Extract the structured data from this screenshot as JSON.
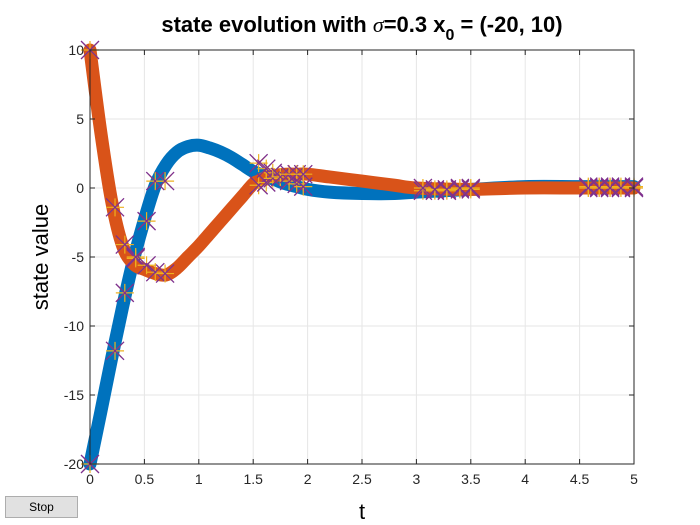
{
  "chart_data": {
    "type": "line",
    "title": {
      "prefix": "state evolution with ",
      "sigma": "σ",
      "sigma_value": "=0.3 x",
      "subscript": "0",
      "suffix": " = (-20, 10)"
    },
    "xlabel": "t",
    "ylabel": "state value",
    "xlim": [
      0,
      5
    ],
    "ylim": [
      -20,
      10
    ],
    "xticks": [
      0,
      0.5,
      1,
      1.5,
      2,
      2.5,
      3,
      3.5,
      4,
      4.5,
      5
    ],
    "xtick_labels": [
      "0",
      "0.5",
      "1",
      "1.5",
      "2",
      "2.5",
      "3",
      "3.5",
      "4",
      "4.5",
      "5"
    ],
    "yticks": [
      -20,
      -15,
      -10,
      -5,
      0,
      5,
      10
    ],
    "ytick_labels": [
      "-20",
      "-15",
      "-10",
      "-5",
      "0",
      "5",
      "10"
    ],
    "grid": true,
    "series": [
      {
        "color": "#0072BD",
        "x": [
          0,
          0.1,
          0.2,
          0.3,
          0.4,
          0.5,
          0.6,
          0.7,
          0.8,
          0.9,
          1.0,
          1.1,
          1.2,
          1.3,
          1.4,
          1.5,
          1.6,
          1.7,
          1.8,
          1.9,
          2.0,
          2.2,
          2.5,
          2.8,
          3.0,
          3.5,
          4.0,
          4.5,
          5.0
        ],
        "y": [
          -20,
          -16.2,
          -12.3,
          -8.6,
          -5.2,
          -2.3,
          0.2,
          1.7,
          2.6,
          3.0,
          3.1,
          2.9,
          2.6,
          2.2,
          1.7,
          1.2,
          0.9,
          0.6,
          0.3,
          0.1,
          -0.1,
          -0.3,
          -0.4,
          -0.4,
          -0.3,
          -0.1,
          0.1,
          0.1,
          0.1
        ]
      },
      {
        "color": "#D95319",
        "x": [
          0,
          0.1,
          0.2,
          0.3,
          0.4,
          0.5,
          0.6,
          0.7,
          0.8,
          0.9,
          1.0,
          1.1,
          1.2,
          1.3,
          1.4,
          1.5,
          1.55,
          1.6,
          1.7,
          1.8,
          1.9,
          2.0,
          2.2,
          2.5,
          2.8,
          3.0,
          3.5,
          4.0,
          4.5,
          5.0
        ],
        "y": [
          10,
          4.0,
          -1.0,
          -4.2,
          -5.5,
          -5.9,
          -6.2,
          -6.3,
          -5.8,
          -5.0,
          -4.2,
          -3.3,
          -2.4,
          -1.5,
          -0.6,
          0.3,
          0.5,
          0.7,
          0.9,
          1.0,
          1.0,
          1.0,
          0.8,
          0.5,
          0.2,
          0.0,
          -0.1,
          0.0,
          0.0,
          0.0
        ]
      }
    ],
    "event_markers": {
      "t": [
        0,
        0.23,
        0.32,
        0.42,
        0.52,
        0.6,
        0.69,
        1.55,
        1.62,
        1.68,
        1.75,
        1.83,
        1.9,
        1.96,
        3.06,
        3.17,
        3.28,
        3.4,
        3.5,
        4.58,
        4.68,
        4.78,
        4.88,
        5.0
      ],
      "x_series_y": [
        -20,
        -11.8,
        -7.6,
        -5.1,
        -2.4,
        0.5,
        0.5,
        1.8,
        1.4,
        1.1,
        0.8,
        0.5,
        0.3,
        0.1,
        -0.2,
        -0.2,
        -0.2,
        -0.1,
        -0.1,
        0.1,
        0.1,
        0.1,
        0.1,
        0.1
      ],
      "y_series_y": [
        10,
        -1.4,
        -4.1,
        -5.0,
        -5.6,
        -6.1,
        -6.2,
        0.2,
        0.4,
        0.7,
        0.8,
        1.0,
        1.0,
        1.0,
        0.0,
        -0.1,
        -0.1,
        0.0,
        0.0,
        0.0,
        0.0,
        0.0,
        0.0,
        0.0
      ],
      "star_color": "#EDB120",
      "cross_color": "#7E2F8E"
    }
  },
  "controls": {
    "stop_label": "Stop"
  }
}
